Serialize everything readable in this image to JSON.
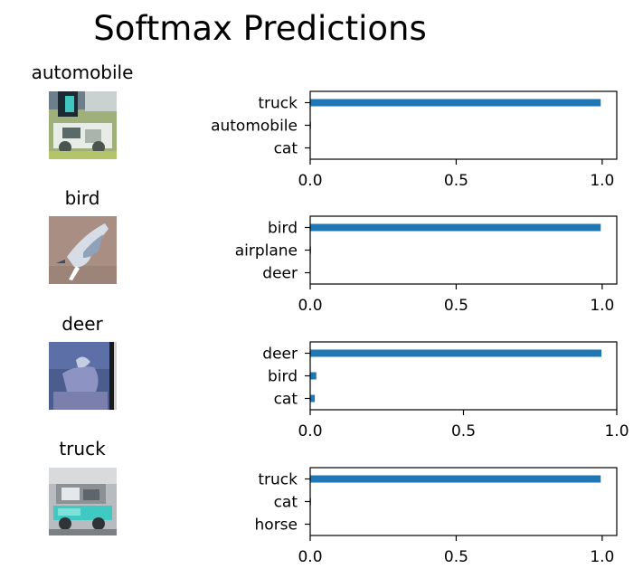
{
  "figure": {
    "title": "Softmax Predictions"
  },
  "colors": {
    "bar": "#1f77b4",
    "axis": "#000000",
    "background": "#ffffff"
  },
  "chart_data": [
    {
      "type": "bar",
      "orientation": "horizontal",
      "image_label": "automobile",
      "image_description": "thumbnail",
      "categories": [
        "truck",
        "automobile",
        "cat"
      ],
      "values": [
        0.995,
        0.003,
        0.001
      ],
      "xlim": [
        0,
        1.05
      ],
      "xticks": [
        "0.0",
        "0.5",
        "1.0"
      ],
      "xtick_values": [
        0,
        0.5,
        1.0
      ],
      "grid": false
    },
    {
      "type": "bar",
      "orientation": "horizontal",
      "image_label": "bird",
      "image_description": "thumbnail",
      "categories": [
        "bird",
        "airplane",
        "deer"
      ],
      "values": [
        0.995,
        0.003,
        0.001
      ],
      "xlim": [
        0,
        1.05
      ],
      "xticks": [
        "0.0",
        "0.5",
        "1.0"
      ],
      "xtick_values": [
        0,
        0.5,
        1.0
      ],
      "grid": false
    },
    {
      "type": "bar",
      "orientation": "horizontal",
      "image_label": "deer",
      "image_description": "thumbnail",
      "categories": [
        "deer",
        "bird",
        "cat"
      ],
      "values": [
        0.95,
        0.02,
        0.015
      ],
      "xlim": [
        0,
        1.0
      ],
      "xticks": [
        "0.0",
        "0.5",
        "1.0"
      ],
      "xtick_values": [
        0,
        0.5,
        1.0
      ],
      "grid": false
    },
    {
      "type": "bar",
      "orientation": "horizontal",
      "image_label": "truck",
      "image_description": "thumbnail",
      "categories": [
        "truck",
        "cat",
        "horse"
      ],
      "values": [
        0.995,
        0.003,
        0.001
      ],
      "xlim": [
        0,
        1.05
      ],
      "xticks": [
        "0.0",
        "0.5",
        "1.0"
      ],
      "xtick_values": [
        0,
        0.5,
        1.0
      ],
      "grid": false
    }
  ]
}
